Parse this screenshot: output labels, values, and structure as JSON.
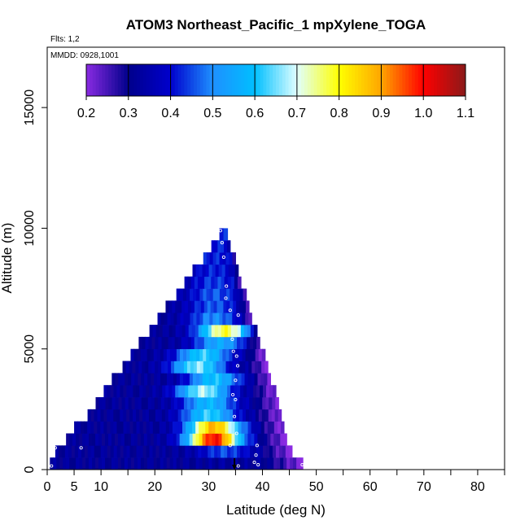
{
  "chart_data": {
    "type": "heatmap",
    "title": "ATOM3 Northeast_Pacific_1 mpXylene_TOGA",
    "subtitle_flights": "Flts: 1,2",
    "subtitle_dates": "MMDD: 0928,1001",
    "xlabel": "Latitude (deg N)",
    "ylabel": "Altitude (m)",
    "xlim": [
      0,
      85
    ],
    "ylim": [
      0,
      17500
    ],
    "x_ticks": [
      0,
      5,
      10,
      20,
      30,
      40,
      50,
      60,
      70,
      80
    ],
    "x_tick_labels": [
      "0",
      "5",
      "10",
      "20",
      "30",
      "40",
      "50",
      "60",
      "70",
      "80"
    ],
    "y_ticks": [
      0,
      5000,
      10000,
      15000
    ],
    "y_tick_labels": [
      "0",
      "5000",
      "10000",
      "15000"
    ],
    "colorbar": {
      "ticks": [
        0.2,
        0.3,
        0.4,
        0.5,
        0.6,
        0.7,
        0.8,
        0.9,
        1.0,
        1.1
      ],
      "tick_labels": [
        "0.2",
        "0.3",
        "0.4",
        "0.5",
        "0.6",
        "0.7",
        "0.8",
        "0.9",
        "1.0",
        "1.1"
      ],
      "colors": [
        "#8a2be2",
        "#00008b",
        "#0000cd",
        "#1e90ff",
        "#00bfff",
        "#e0ffff",
        "#ffff00",
        "#ffa500",
        "#ff0000",
        "#8b1a1a"
      ]
    },
    "altitude_rows": [
      {
        "alt": 500,
        "lat_min": 0.5,
        "lat_max": 47.5,
        "peak_lat": 33,
        "peak_val": 0.33
      },
      {
        "alt": 1000,
        "lat_min": 1.5,
        "lat_max": 45.5,
        "peak_lat": 33,
        "peak_val": 0.45
      },
      {
        "alt": 1500,
        "lat_min": 3.5,
        "lat_max": 44.5,
        "peak_lat": 31,
        "peak_val": 1.0
      },
      {
        "alt": 2000,
        "lat_min": 5,
        "lat_max": 44,
        "peak_lat": 31,
        "peak_val": 0.88
      },
      {
        "alt": 2500,
        "lat_min": 7.5,
        "lat_max": 43.5,
        "peak_lat": 30,
        "peak_val": 0.62
      },
      {
        "alt": 3000,
        "lat_min": 9,
        "lat_max": 43,
        "peak_lat": 30,
        "peak_val": 0.58
      },
      {
        "alt": 3500,
        "lat_min": 10.5,
        "lat_max": 42.5,
        "peak_lat": 29,
        "peak_val": 0.68
      },
      {
        "alt": 4000,
        "lat_min": 12,
        "lat_max": 41.5,
        "peak_lat": 31,
        "peak_val": 0.6
      },
      {
        "alt": 4500,
        "lat_min": 14,
        "lat_max": 41,
        "peak_lat": 28,
        "peak_val": 0.66
      },
      {
        "alt": 5000,
        "lat_min": 15.5,
        "lat_max": 40.5,
        "peak_lat": 29,
        "peak_val": 0.62
      },
      {
        "alt": 5500,
        "lat_min": 17,
        "lat_max": 39.5,
        "peak_lat": 32,
        "peak_val": 0.55
      },
      {
        "alt": 6000,
        "lat_min": 19,
        "lat_max": 39,
        "peak_lat": 33,
        "peak_val": 0.78
      },
      {
        "alt": 6500,
        "lat_min": 20.5,
        "lat_max": 38,
        "peak_lat": 31,
        "peak_val": 0.5
      },
      {
        "alt": 7000,
        "lat_min": 22,
        "lat_max": 37.5,
        "peak_lat": 31,
        "peak_val": 0.46
      },
      {
        "alt": 7500,
        "lat_min": 24,
        "lat_max": 37,
        "peak_lat": 31,
        "peak_val": 0.46
      },
      {
        "alt": 8000,
        "lat_min": 25.5,
        "lat_max": 36,
        "peak_lat": 31,
        "peak_val": 0.44
      },
      {
        "alt": 8500,
        "lat_min": 27,
        "lat_max": 35.5,
        "peak_lat": 31,
        "peak_val": 0.42
      },
      {
        "alt": 9000,
        "lat_min": 29,
        "lat_max": 35,
        "peak_lat": 31,
        "peak_val": 0.42
      },
      {
        "alt": 9500,
        "lat_min": 30.5,
        "lat_max": 34,
        "peak_lat": 32,
        "peak_val": 0.42
      },
      {
        "alt": 10000,
        "lat_min": 32,
        "lat_max": 33.5,
        "peak_lat": 32.5,
        "peak_val": 0.42
      }
    ],
    "flight_track_points": [
      {
        "lat": 0.8,
        "alt": 150
      },
      {
        "lat": 1.5,
        "alt": 900
      },
      {
        "lat": 6.3,
        "alt": 900
      },
      {
        "lat": 32.2,
        "alt": 9900
      },
      {
        "lat": 32.5,
        "alt": 9400
      },
      {
        "lat": 32.8,
        "alt": 8800
      },
      {
        "lat": 33.3,
        "alt": 7600
      },
      {
        "lat": 33.2,
        "alt": 7100
      },
      {
        "lat": 34,
        "alt": 6600
      },
      {
        "lat": 35.5,
        "alt": 6400
      },
      {
        "lat": 34.4,
        "alt": 5400
      },
      {
        "lat": 34.6,
        "alt": 4900
      },
      {
        "lat": 35.2,
        "alt": 4700
      },
      {
        "lat": 35.4,
        "alt": 4300
      },
      {
        "lat": 35.0,
        "alt": 3700
      },
      {
        "lat": 34.5,
        "alt": 3100
      },
      {
        "lat": 35.0,
        "alt": 2900
      },
      {
        "lat": 34.8,
        "alt": 2200
      },
      {
        "lat": 35.2,
        "alt": 1500
      },
      {
        "lat": 34.0,
        "alt": 1000
      },
      {
        "lat": 39.0,
        "alt": 1000
      },
      {
        "lat": 38.8,
        "alt": 600
      },
      {
        "lat": 38.5,
        "alt": 300
      },
      {
        "lat": 39.2,
        "alt": 200
      },
      {
        "lat": 47.4,
        "alt": 200
      },
      {
        "lat": 35.5,
        "alt": 150
      }
    ],
    "marker_lat": 34.8
  }
}
